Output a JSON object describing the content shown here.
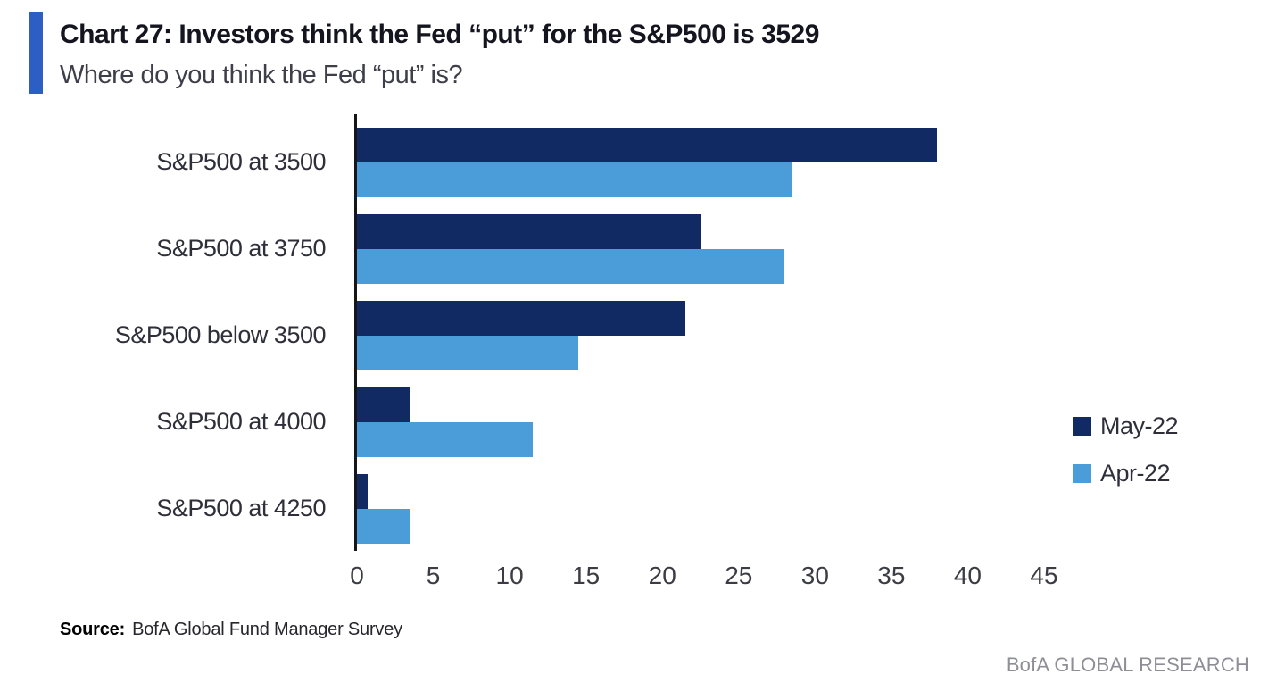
{
  "header": {
    "title": "Chart 27: Investors think the Fed “put” for the S&P500 is 3529",
    "subtitle": "Where do you think the Fed “put” is?"
  },
  "chart_data": {
    "type": "bar",
    "orientation": "horizontal",
    "categories": [
      "S&P500 at 3500",
      "S&P500 at 3750",
      "S&P500 below 3500",
      "S&P500 at 4000",
      "S&P500 at 4250"
    ],
    "series": [
      {
        "name": "May-22",
        "color": "#122a63",
        "values": [
          38,
          22.5,
          21.5,
          3.5,
          0.7
        ]
      },
      {
        "name": "Apr-22",
        "color": "#4a9dd8",
        "values": [
          28.5,
          28,
          14.5,
          11.5,
          3.5
        ]
      }
    ],
    "xlim": [
      0,
      45
    ],
    "xticks": [
      0,
      5,
      10,
      15,
      20,
      25,
      30,
      35,
      40,
      45
    ],
    "grid": false,
    "legend_position": "right",
    "accent_color": "#2d5ec4"
  },
  "footer": {
    "source_label": "Source:",
    "source_text": "BofA Global Fund Manager Survey",
    "brand": "BofA GLOBAL RESEARCH"
  }
}
